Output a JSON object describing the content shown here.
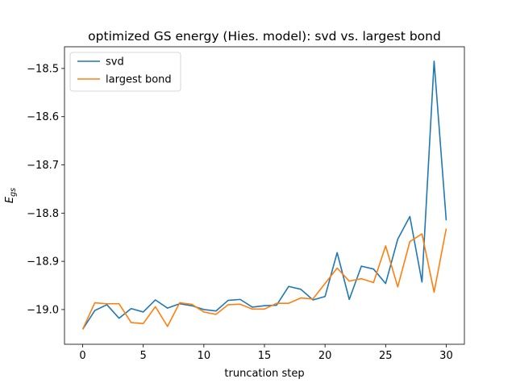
{
  "chart_data": {
    "type": "line",
    "title": "optimized GS energy (Hies. model): svd vs. largest bond",
    "xlabel": "truncation step",
    "ylabel": "E",
    "ylabel_sub": "gs",
    "xlim": [
      -1.5,
      31.5
    ],
    "ylim": [
      -19.072,
      -18.455
    ],
    "xticks": [
      0,
      5,
      10,
      15,
      20,
      25,
      30
    ],
    "yticks": [
      -19.0,
      -18.9,
      -18.8,
      -18.7,
      -18.6,
      -18.5
    ],
    "ytick_labels": [
      "−19.0",
      "−18.9",
      "−18.8",
      "−18.7",
      "−18.6",
      "−18.5"
    ],
    "grid": false,
    "legend_position": "top-left",
    "x": [
      0,
      1,
      2,
      3,
      4,
      5,
      6,
      7,
      8,
      9,
      10,
      11,
      12,
      13,
      14,
      15,
      16,
      17,
      18,
      19,
      20,
      21,
      22,
      23,
      24,
      25,
      26,
      27,
      28,
      29,
      30
    ],
    "series": [
      {
        "name": "svd",
        "color": "#1f77b4",
        "values": [
          -19.041,
          -19.002,
          -18.99,
          -19.018,
          -18.998,
          -19.005,
          -18.98,
          -18.997,
          -18.988,
          -18.992,
          -19.0,
          -19.003,
          -18.981,
          -18.979,
          -18.995,
          -18.992,
          -18.991,
          -18.952,
          -18.958,
          -18.98,
          -18.973,
          -18.882,
          -18.979,
          -18.91,
          -18.916,
          -18.946,
          -18.854,
          -18.807,
          -18.943,
          -18.485,
          -18.815
        ]
      },
      {
        "name": "largest bond",
        "color": "#ff7f0e",
        "values": [
          -19.041,
          -18.986,
          -18.988,
          -18.988,
          -19.027,
          -19.029,
          -18.994,
          -19.035,
          -18.986,
          -18.989,
          -19.005,
          -19.01,
          -18.99,
          -18.989,
          -18.999,
          -18.999,
          -18.987,
          -18.987,
          -18.976,
          -18.978,
          -18.946,
          -18.914,
          -18.941,
          -18.936,
          -18.944,
          -18.868,
          -18.953,
          -18.859,
          -18.843,
          -18.964,
          -18.832
        ]
      }
    ]
  }
}
